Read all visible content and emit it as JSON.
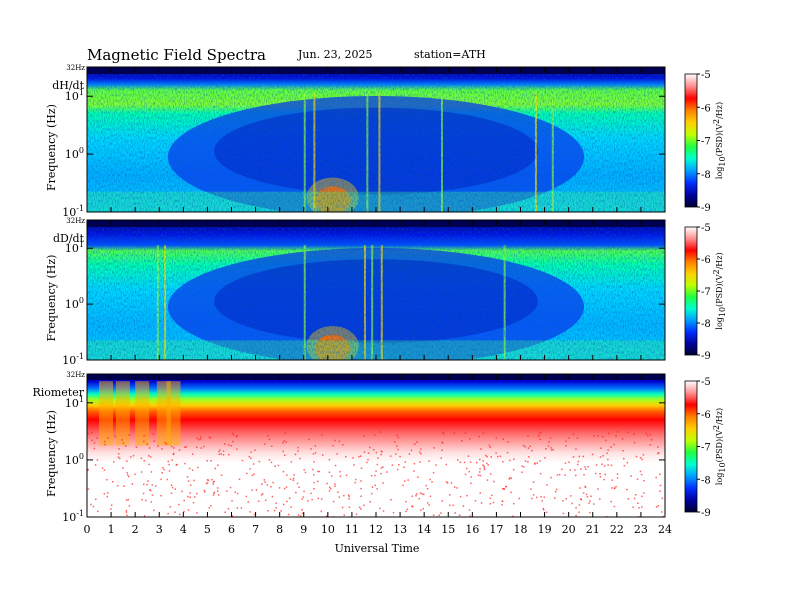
{
  "header": {
    "title": "Magnetic  Field  Spectra",
    "date": "Jun. 23, 2025",
    "station": "station=ATH"
  },
  "colors": {
    "colormap": [
      "#000050",
      "#0000c8",
      "#0040ff",
      "#00b0ff",
      "#00ffc0",
      "#40ff40",
      "#c8ff00",
      "#ffd000",
      "#ff7000",
      "#ff0000",
      "#ff8080",
      "#ffffff"
    ]
  },
  "chart_data": [
    {
      "type": "heatmap",
      "panel_label": "dH/dt",
      "ylabel": "Frequency  (Hz)",
      "top_label": "32Hz",
      "x_ticks": [
        "0",
        "1",
        "2",
        "3",
        "4",
        "5",
        "6",
        "7",
        "8",
        "9",
        "10",
        "11",
        "12",
        "13",
        "14",
        "15",
        "16",
        "17",
        "18",
        "19",
        "20",
        "21",
        "22",
        "23",
        "24"
      ],
      "xlim": [
        0,
        24
      ],
      "y_ticks": [
        {
          "base": "10",
          "exp": "1",
          "value": 10
        },
        {
          "base": "10",
          "exp": "0",
          "value": 1
        },
        {
          "base": "10",
          "exp": "-1",
          "value": 0.1
        }
      ],
      "ylim": [
        0.1,
        32
      ],
      "yscale": "log",
      "colorbar": {
        "label_prefix": "log",
        "label_sub": "10",
        "label_suffix": "(PSD)(V",
        "label_sup": "2",
        "label_end": "/Hz)",
        "ticks": [
          "-5",
          "-6",
          "-7",
          "-8",
          "-9"
        ],
        "range": [
          -9,
          -5
        ]
      }
    },
    {
      "type": "heatmap",
      "panel_label": "dD/dt",
      "ylabel": "Frequency  (Hz)",
      "top_label": "32Hz",
      "x_ticks": [
        "0",
        "1",
        "2",
        "3",
        "4",
        "5",
        "6",
        "7",
        "8",
        "9",
        "10",
        "11",
        "12",
        "13",
        "14",
        "15",
        "16",
        "17",
        "18",
        "19",
        "20",
        "21",
        "22",
        "23",
        "24"
      ],
      "xlim": [
        0,
        24
      ],
      "y_ticks": [
        {
          "base": "10",
          "exp": "1",
          "value": 10
        },
        {
          "base": "10",
          "exp": "0",
          "value": 1
        },
        {
          "base": "10",
          "exp": "-1",
          "value": 0.1
        }
      ],
      "ylim": [
        0.1,
        32
      ],
      "yscale": "log",
      "colorbar": {
        "label_prefix": "log",
        "label_sub": "10",
        "label_suffix": "(PSD)(V",
        "label_sup": "2",
        "label_end": "/Hz)",
        "ticks": [
          "-5",
          "-6",
          "-7",
          "-8",
          "-9"
        ],
        "range": [
          -9,
          -5
        ]
      }
    },
    {
      "type": "heatmap",
      "panel_label": "Riometer",
      "ylabel": "Frequency  (Hz)",
      "top_label": "32Hz",
      "x_ticks": [
        "0",
        "1",
        "2",
        "3",
        "4",
        "5",
        "6",
        "7",
        "8",
        "9",
        "10",
        "11",
        "12",
        "13",
        "14",
        "15",
        "16",
        "17",
        "18",
        "19",
        "20",
        "21",
        "22",
        "23",
        "24"
      ],
      "xlim": [
        0,
        24
      ],
      "y_ticks": [
        {
          "base": "10",
          "exp": "1",
          "value": 10
        },
        {
          "base": "10",
          "exp": "0",
          "value": 1
        },
        {
          "base": "10",
          "exp": "-1",
          "value": 0.1
        }
      ],
      "ylim": [
        0.1,
        32
      ],
      "yscale": "log",
      "xlabel": "Universal  Time",
      "colorbar": {
        "label_prefix": "log",
        "label_sub": "10",
        "label_suffix": "(PSD)(V",
        "label_sup": "2",
        "label_end": "/Hz)",
        "ticks": [
          "-5",
          "-6",
          "-7",
          "-8",
          "-9"
        ],
        "range": [
          -9,
          -5
        ]
      }
    }
  ]
}
